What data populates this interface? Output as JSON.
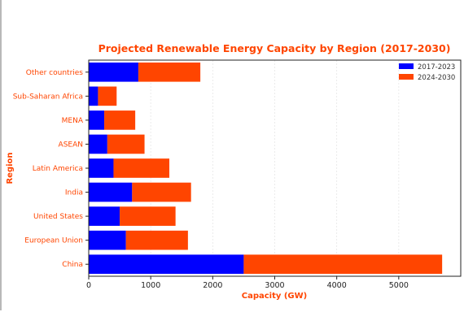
{
  "chart_data": {
    "type": "bar",
    "orientation": "horizontal",
    "stacked": true,
    "title": "Projected Renewable Energy Capacity by Region (2017-2030)",
    "xlabel": "Capacity (GW)",
    "ylabel": "Region",
    "categories": [
      "China",
      "European Union",
      "United States",
      "India",
      "Latin America",
      "ASEAN",
      "MENA",
      "Sub-Saharan Africa",
      "Other countries"
    ],
    "series": [
      {
        "name": "2017-2023",
        "color": "#0000ff",
        "values": [
          2500,
          600,
          500,
          700,
          400,
          300,
          250,
          150,
          800
        ]
      },
      {
        "name": "2024-2030",
        "color": "#ff4500",
        "values": [
          3200,
          1000,
          900,
          950,
          900,
          600,
          500,
          300,
          1000
        ]
      }
    ],
    "xlim": [
      0,
      6000
    ],
    "xticks": [
      "0",
      "1000",
      "2000",
      "3000",
      "4000",
      "5000"
    ],
    "grid": true,
    "legend_position": "top-right"
  }
}
